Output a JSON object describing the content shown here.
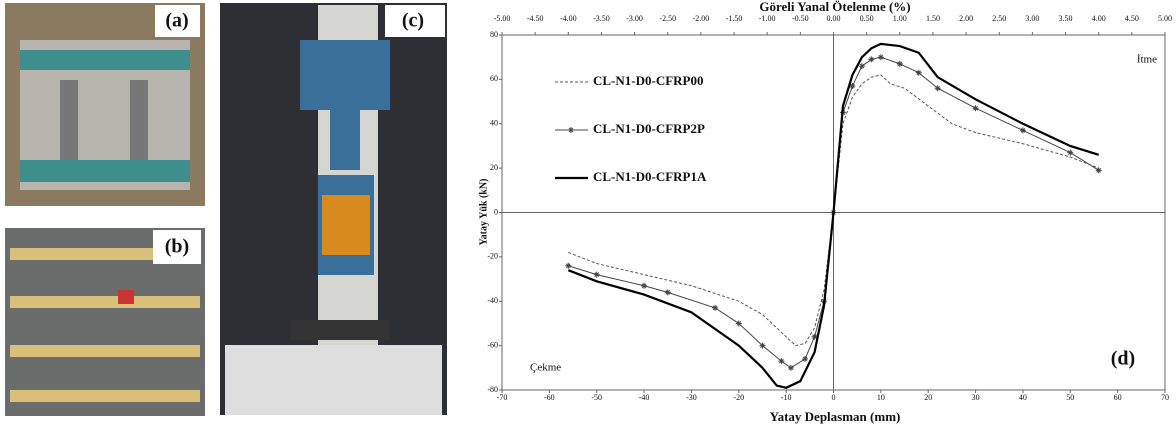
{
  "panel_labels": [
    "(a)",
    "(b)",
    "(c)"
  ],
  "chart_data": {
    "type": "line",
    "panel_label": "(d)",
    "title": "Göreli Yanal Ötelenme (%)",
    "x_label": "Yatay Deplasman (mm)",
    "y_label": "Yatay Yük (kN)",
    "annotations": [
      "İtme",
      "Çekme"
    ],
    "xlim": [
      -70,
      70
    ],
    "xticks": [
      -70,
      -60,
      -50,
      -40,
      -30,
      -20,
      -10,
      0,
      10,
      20,
      30,
      40,
      50,
      60,
      70
    ],
    "x2lim": [
      -5,
      5
    ],
    "x2ticks": [
      {
        "value": -5,
        "label": "-5.00"
      },
      {
        "value": -4.5,
        "label": "-4.50"
      },
      {
        "value": -4,
        "label": "-4.00"
      },
      {
        "value": -3.5,
        "label": "-3.50"
      },
      {
        "value": -3,
        "label": "-3.00"
      },
      {
        "value": -2.5,
        "label": "-2.50"
      },
      {
        "value": -2,
        "label": "-2.00"
      },
      {
        "value": -1.5,
        "label": "-1.50"
      },
      {
        "value": -1,
        "label": "-1.00"
      },
      {
        "value": -0.5,
        "label": "-0.50"
      },
      {
        "value": 0,
        "label": "0.00"
      },
      {
        "value": 0.5,
        "label": "0.50"
      },
      {
        "value": 1,
        "label": "1.00"
      },
      {
        "value": 1.5,
        "label": "1.50"
      },
      {
        "value": 2,
        "label": "2.00"
      },
      {
        "value": 2.5,
        "label": "2.50"
      },
      {
        "value": 3,
        "label": "3.00"
      },
      {
        "value": 3.5,
        "label": "3.50"
      },
      {
        "value": 4,
        "label": "4.00"
      },
      {
        "value": 4.5,
        "label": "4.50"
      },
      {
        "value": 5,
        "label": "5.00"
      }
    ],
    "ylim": [
      -80,
      80
    ],
    "yticks": [
      -80,
      -60,
      -40,
      -20,
      0,
      20,
      40,
      60,
      80
    ],
    "series": [
      {
        "name": "CL-N1-D0-CFRP00",
        "color": "#555555",
        "style": "dashed",
        "x": [
          -56,
          -50,
          -40,
          -30,
          -20,
          -15,
          -10,
          -8,
          -6,
          -4,
          -2,
          0,
          2,
          4,
          6,
          8,
          10,
          12,
          15,
          20,
          25,
          30,
          40,
          50,
          56
        ],
        "values": [
          -18,
          -23,
          -28,
          -33,
          -40,
          -46,
          -56,
          -60,
          -59,
          -52,
          -35,
          0,
          40,
          52,
          58,
          61,
          62,
          58,
          56,
          48,
          40,
          36,
          31,
          25,
          20
        ]
      },
      {
        "name": "CL-N1-D0-CFRP2P",
        "color": "#444444",
        "style": "marker",
        "x": [
          -56,
          -50,
          -40,
          -35,
          -25,
          -20,
          -15,
          -11,
          -9,
          -6,
          -4,
          -2,
          0,
          2,
          4,
          6,
          8,
          10,
          14,
          18,
          22,
          30,
          40,
          50,
          56
        ],
        "values": [
          -24,
          -28,
          -33,
          -36,
          -43,
          -50,
          -60,
          -67,
          -70,
          -66,
          -56,
          -40,
          0,
          45,
          57,
          66,
          69,
          70,
          67,
          63,
          56,
          47,
          37,
          27,
          19
        ]
      },
      {
        "name": "CL-N1-D0-CFRP1A",
        "color": "#000000",
        "style": "thick",
        "x": [
          -56,
          -50,
          -40,
          -30,
          -20,
          -15,
          -12,
          -10,
          -7,
          -4,
          -2,
          0,
          2,
          4,
          6,
          8,
          10,
          14,
          18,
          22,
          30,
          40,
          50,
          56
        ],
        "values": [
          -26,
          -31,
          -37,
          -45,
          -60,
          -70,
          -78,
          -79,
          -76,
          -63,
          -42,
          0,
          48,
          62,
          70,
          74,
          76,
          75,
          72,
          61,
          51,
          40,
          30,
          26
        ]
      }
    ]
  }
}
